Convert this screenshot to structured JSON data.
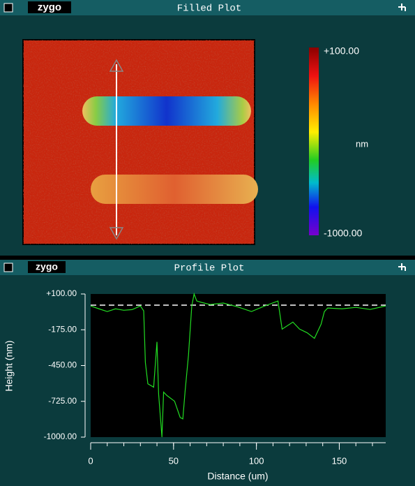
{
  "windows": [
    {
      "title": "Filled Plot",
      "logo": "zygo",
      "colorbar": {
        "max_label": "+100.00",
        "unit": "nm",
        "min_label": "-1000.00"
      }
    },
    {
      "title": "Profile Plot",
      "logo": "zygo"
    }
  ],
  "chart_data": {
    "type": "line",
    "x_label": "Distance (um)",
    "y_label": "Height (nm)",
    "x": [
      0,
      5,
      10,
      15,
      20,
      25,
      30,
      32,
      33,
      34.5,
      38,
      40,
      41,
      43,
      44,
      46,
      50.6,
      54,
      55.6,
      57,
      59,
      61,
      62.4,
      64,
      67,
      72,
      80,
      88.5,
      97,
      105,
      113,
      115.5,
      122,
      126,
      130.6,
      135,
      139,
      141,
      143,
      151.7,
      160,
      168.6,
      178
    ],
    "values": [
      8,
      -14,
      -35,
      -14,
      -25,
      -20,
      8,
      -30,
      -426,
      -590,
      -616,
      -268,
      -670,
      -1000,
      -654,
      -680,
      -724,
      -849,
      -860,
      -643,
      -372,
      8,
      100,
      46,
      35,
      19,
      30,
      2,
      -35,
      8,
      46,
      -170,
      -116,
      -170,
      -198,
      -241,
      -133,
      -35,
      -8,
      -14,
      -3,
      -19,
      8
    ],
    "color": "#22dd22",
    "reference_value": 14,
    "xlim": [
      0,
      178
    ],
    "xticks": [
      0,
      50,
      100,
      150
    ],
    "ylim": [
      -1000,
      100
    ],
    "yticks": [
      {
        "value": 100,
        "label": "+100.00"
      },
      {
        "value": -175,
        "label": "-175.00"
      },
      {
        "value": -450,
        "label": "-450.00"
      },
      {
        "value": -725,
        "label": "-725.00"
      },
      {
        "value": -1000,
        "label": "-1000.00"
      }
    ]
  }
}
